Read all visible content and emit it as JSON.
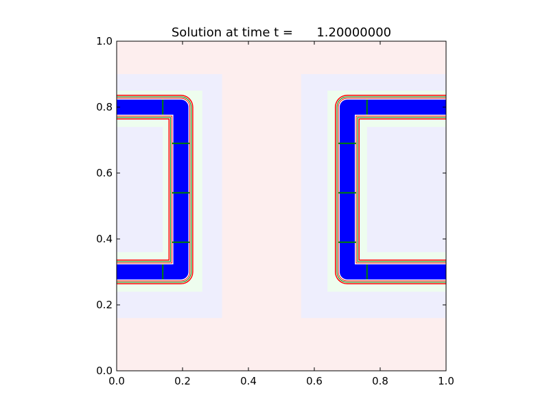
{
  "chart_data": {
    "type": "contour",
    "title": "Solution at time t =      1.20000000",
    "xlim": [
      0,
      1
    ],
    "ylim": [
      0,
      1
    ],
    "xticks": [
      "0.0",
      "0.2",
      "0.4",
      "0.6",
      "0.8",
      "1.0"
    ],
    "yticks": [
      "0.0",
      "0.2",
      "0.4",
      "0.6",
      "0.8",
      "1.0"
    ],
    "grid": false,
    "background_color": "#fdeeee",
    "regions": [
      {
        "color": "#eeeefd",
        "x": [
          0,
          0.32
        ],
        "y": [
          0.16,
          0.9
        ]
      },
      {
        "color": "#eefdee",
        "x": [
          0,
          0.26
        ],
        "y": [
          0.24,
          0.85
        ]
      },
      {
        "color": "#eeeefd",
        "x": [
          0,
          0.14
        ],
        "y": [
          0.36,
          0.74
        ]
      },
      {
        "color": "#eeeefd",
        "x": [
          0.56,
          1
        ],
        "y": [
          0.16,
          0.9
        ]
      },
      {
        "color": "#eefdee",
        "x": [
          0.64,
          1
        ],
        "y": [
          0.24,
          0.85
        ]
      },
      {
        "color": "#eeeefd",
        "x": [
          0.76,
          1
        ],
        "y": [
          0.36,
          0.74
        ]
      }
    ],
    "bands": [
      {
        "points": [
          [
            0,
            0.8
          ],
          [
            0.195,
            0.8
          ],
          [
            0.195,
            0.3
          ],
          [
            0,
            0.3
          ]
        ]
      },
      {
        "points": [
          [
            1,
            0.8
          ],
          [
            0.7,
            0.8
          ],
          [
            0.7,
            0.3
          ],
          [
            1,
            0.3
          ]
        ]
      }
    ],
    "contour_colors": [
      "#ff0000",
      "#008000",
      "#ffffff",
      "#0000ff"
    ]
  }
}
